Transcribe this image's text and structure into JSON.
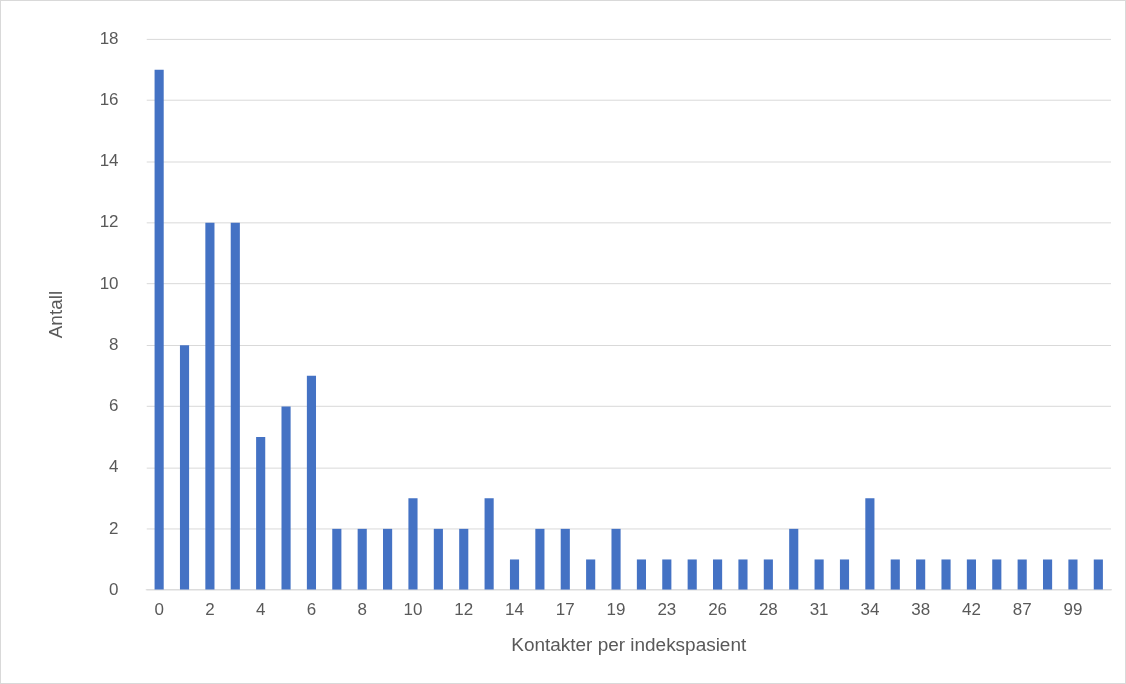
{
  "chart_data": {
    "type": "bar",
    "xlabel": "Kontakter per indekspasient",
    "ylabel": "Antall",
    "categories": [
      "0",
      null,
      "2",
      null,
      "4",
      null,
      "6",
      null,
      "8",
      null,
      "10",
      null,
      "12",
      null,
      "14",
      null,
      "17",
      null,
      "19",
      null,
      "23",
      null,
      "26",
      null,
      "28",
      null,
      "31",
      null,
      "34",
      null,
      "38",
      null,
      "42",
      null,
      "87",
      null,
      "99",
      null
    ],
    "values": [
      17,
      8,
      12,
      12,
      5,
      6,
      7,
      2,
      2,
      2,
      3,
      2,
      2,
      3,
      1,
      2,
      2,
      1,
      2,
      1,
      1,
      1,
      1,
      1,
      1,
      2,
      1,
      1,
      3,
      1,
      1,
      1,
      1,
      1,
      1,
      1,
      1,
      1
    ],
    "color": "#4472c4",
    "ylim": [
      0,
      18
    ],
    "yticks": [
      0,
      2,
      4,
      6,
      8,
      10,
      12,
      14,
      16,
      18
    ],
    "grid": "y",
    "legend": false
  }
}
